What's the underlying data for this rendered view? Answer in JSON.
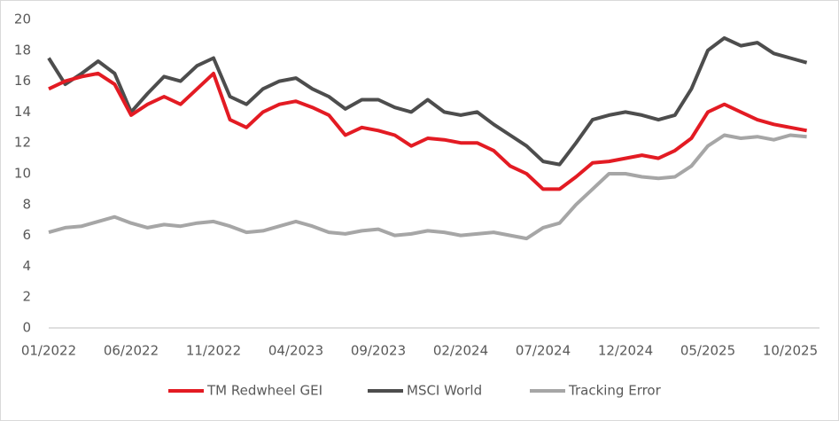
{
  "chart_data": {
    "type": "line",
    "categories": [
      "01/2022",
      null,
      null,
      null,
      null,
      "06/2022",
      null,
      null,
      null,
      null,
      "11/2022",
      null,
      null,
      null,
      null,
      "04/2023",
      null,
      null,
      null,
      null,
      "09/2023",
      null,
      null,
      null,
      null,
      "02/2024",
      null,
      null,
      null,
      null,
      "07/2024",
      null,
      null,
      null,
      null,
      "12/2024",
      null,
      null,
      null,
      null,
      "05/2025",
      null,
      null,
      null,
      null,
      "10/2025",
      null
    ],
    "series": [
      {
        "name": "TM Redwheel GEI",
        "color": "#e31b23",
        "values": [
          15.5,
          16.0,
          16.3,
          16.5,
          15.8,
          13.8,
          14.5,
          15.0,
          14.5,
          15.5,
          16.5,
          13.5,
          13.0,
          14.0,
          14.5,
          14.7,
          14.3,
          13.8,
          12.5,
          13.0,
          12.8,
          12.5,
          11.8,
          12.3,
          12.2,
          12.0,
          12.0,
          11.5,
          10.5,
          10.0,
          9.0,
          9.0,
          9.8,
          10.7,
          10.8,
          11.0,
          11.2,
          11.0,
          11.5,
          12.3,
          14.0,
          14.5,
          14.0,
          13.5,
          13.2,
          13.0,
          12.8
        ]
      },
      {
        "name": "MSCI World",
        "color": "#4d4d4d",
        "values": [
          17.5,
          15.8,
          16.5,
          17.3,
          16.5,
          14.0,
          15.2,
          16.3,
          16.0,
          17.0,
          17.5,
          15.0,
          14.5,
          15.5,
          16.0,
          16.2,
          15.5,
          15.0,
          14.2,
          14.8,
          14.8,
          14.3,
          14.0,
          14.8,
          14.0,
          13.8,
          14.0,
          13.2,
          12.5,
          11.8,
          10.8,
          10.6,
          12.0,
          13.5,
          13.8,
          14.0,
          13.8,
          13.5,
          13.8,
          15.5,
          18.0,
          18.8,
          18.3,
          18.5,
          17.8,
          17.5,
          17.2
        ]
      },
      {
        "name": "Tracking Error",
        "color": "#a6a6a6",
        "values": [
          6.2,
          6.5,
          6.6,
          6.9,
          7.2,
          6.8,
          6.5,
          6.7,
          6.6,
          6.8,
          6.9,
          6.6,
          6.2,
          6.3,
          6.6,
          6.9,
          6.6,
          6.2,
          6.1,
          6.3,
          6.4,
          6.0,
          6.1,
          6.3,
          6.2,
          6.0,
          6.1,
          6.2,
          6.0,
          5.8,
          6.5,
          6.8,
          8.0,
          9.0,
          10.0,
          10.0,
          9.8,
          9.7,
          9.8,
          10.5,
          11.8,
          12.5,
          12.3,
          12.4,
          12.2,
          12.5,
          12.4
        ]
      }
    ],
    "ylim": [
      0,
      20
    ],
    "yticks": [
      0,
      2,
      4,
      6,
      8,
      10,
      12,
      14,
      16,
      18,
      20
    ],
    "grid": false,
    "legend": "bottom"
  }
}
